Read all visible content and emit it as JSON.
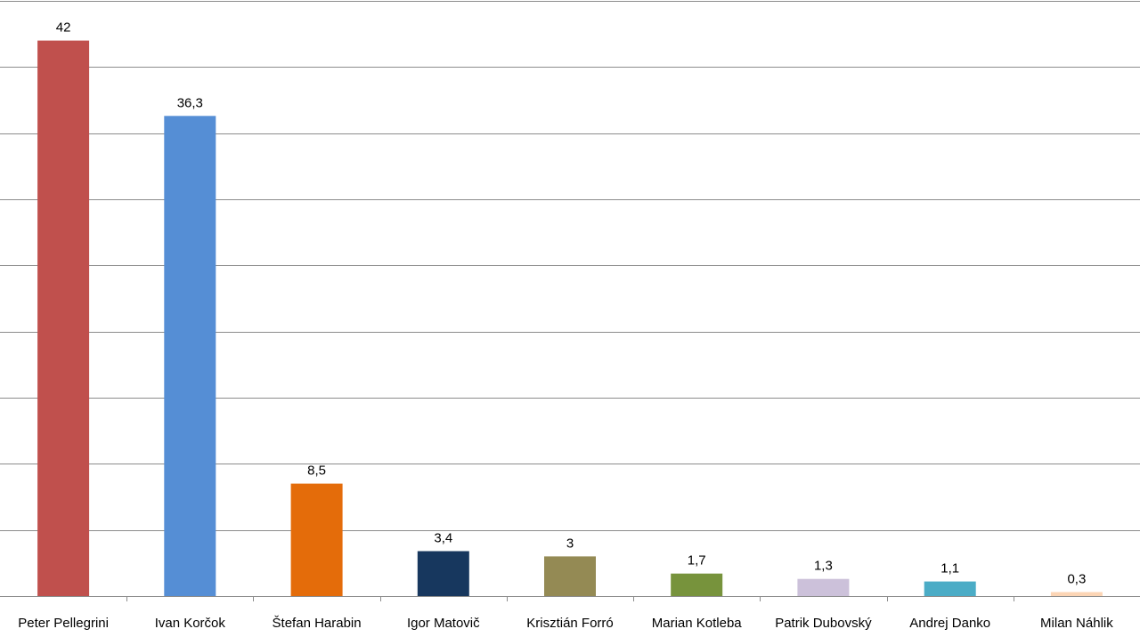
{
  "chart_data": {
    "type": "bar",
    "title": "",
    "xlabel": "",
    "ylabel": "",
    "ylim": [
      0,
      45
    ],
    "grid_step": 5,
    "grid": true,
    "legend": "none",
    "categories": [
      "Peter Pellegrini",
      "Ivan Korčok",
      "Štefan Harabin",
      "Igor Matovič",
      "Krisztián Forró",
      "Marian Kotleba",
      "Patrik Dubovský",
      "Andrej Danko",
      "Milan Náhlik"
    ],
    "values": [
      42,
      36.3,
      8.5,
      3.4,
      3,
      1.7,
      1.3,
      1.1,
      0.3
    ],
    "value_labels": [
      "42",
      "36,3",
      "8,5",
      "3,4",
      "3",
      "1,7",
      "1,3",
      "1,1",
      "0,3"
    ],
    "colors": [
      "#c0504d",
      "#558ed5",
      "#e46c0a",
      "#17375e",
      "#948a54",
      "#77933c",
      "#ccc1da",
      "#4bacc6",
      "#fcd5b5"
    ]
  }
}
